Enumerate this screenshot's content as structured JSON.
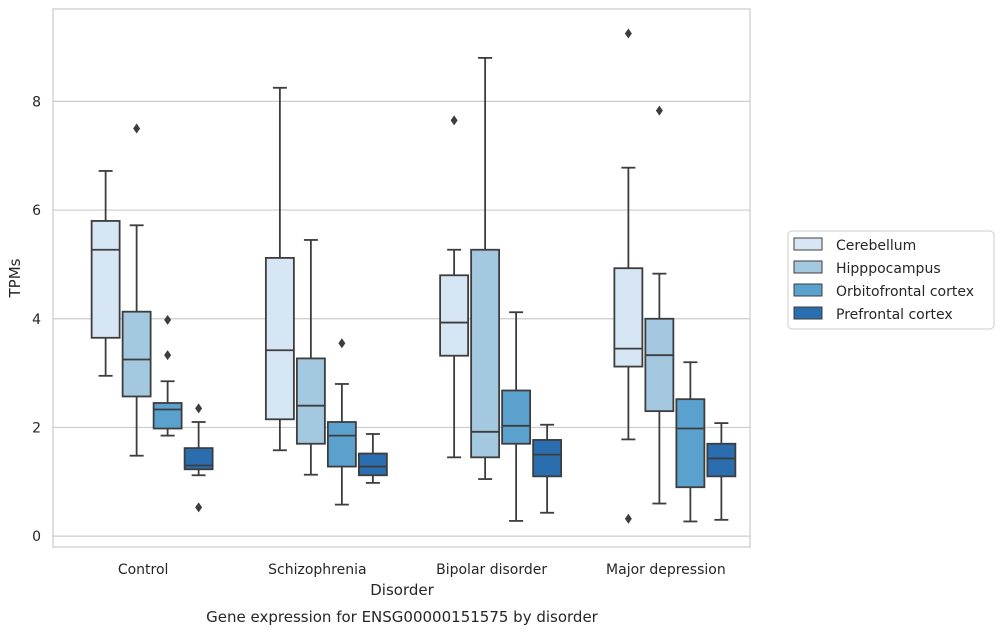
{
  "chart_data": {
    "type": "boxplot",
    "title": "",
    "caption": "Gene expression for ENSG00000151575 by disorder",
    "xlabel": "Disorder",
    "ylabel": "TPMs",
    "ylim": [
      -0.2,
      9.7
    ],
    "yticks": [
      0,
      2,
      4,
      6,
      8
    ],
    "grid": "horizontal",
    "legend_position": "right",
    "categories": [
      "Control",
      "Schizophrenia",
      "Bipolar disorder",
      "Major depression"
    ],
    "series": [
      {
        "name": "Cerebellum",
        "color": "#d6e6f4",
        "boxes": [
          {
            "whislo": 2.95,
            "q1": 3.65,
            "med": 5.27,
            "q3": 5.8,
            "whishi": 6.72,
            "fliers": []
          },
          {
            "whislo": 1.58,
            "q1": 2.15,
            "med": 3.42,
            "q3": 5.12,
            "whishi": 8.25,
            "fliers": []
          },
          {
            "whislo": 1.45,
            "q1": 3.32,
            "med": 3.93,
            "q3": 4.8,
            "whishi": 5.27,
            "fliers": [
              7.65
            ]
          },
          {
            "whislo": 1.78,
            "q1": 3.12,
            "med": 3.45,
            "q3": 4.93,
            "whishi": 6.78,
            "fliers": [
              9.25,
              0.32
            ]
          }
        ]
      },
      {
        "name": "Hipppocampus",
        "color": "#a3c8e0",
        "boxes": [
          {
            "whislo": 1.48,
            "q1": 2.57,
            "med": 3.25,
            "q3": 4.13,
            "whishi": 5.72,
            "fliers": [
              7.5
            ]
          },
          {
            "whislo": 1.13,
            "q1": 1.7,
            "med": 2.4,
            "q3": 3.27,
            "whishi": 5.45,
            "fliers": []
          },
          {
            "whislo": 1.05,
            "q1": 1.45,
            "med": 1.92,
            "q3": 5.27,
            "whishi": 8.8,
            "fliers": []
          },
          {
            "whislo": 0.6,
            "q1": 2.3,
            "med": 3.33,
            "q3": 4.0,
            "whishi": 4.83,
            "fliers": [
              7.83
            ]
          }
        ]
      },
      {
        "name": "Orbitofrontal cortex",
        "color": "#5ba1ce",
        "boxes": [
          {
            "whislo": 1.85,
            "q1": 1.98,
            "med": 2.33,
            "q3": 2.45,
            "whishi": 2.85,
            "fliers": [
              3.98,
              3.33
            ]
          },
          {
            "whislo": 0.58,
            "q1": 1.28,
            "med": 1.85,
            "q3": 2.1,
            "whishi": 2.8,
            "fliers": [
              3.55
            ]
          },
          {
            "whislo": 0.28,
            "q1": 1.7,
            "med": 2.03,
            "q3": 2.68,
            "whishi": 4.12,
            "fliers": []
          },
          {
            "whislo": 0.27,
            "q1": 0.9,
            "med": 1.98,
            "q3": 2.52,
            "whishi": 3.2,
            "fliers": []
          }
        ]
      },
      {
        "name": "Prefrontal cortex",
        "color": "#2a6eb0",
        "boxes": [
          {
            "whislo": 1.12,
            "q1": 1.23,
            "med": 1.3,
            "q3": 1.62,
            "whishi": 2.1,
            "fliers": [
              2.35,
              0.53
            ]
          },
          {
            "whislo": 0.98,
            "q1": 1.12,
            "med": 1.28,
            "q3": 1.52,
            "whishi": 1.88,
            "fliers": []
          },
          {
            "whislo": 0.43,
            "q1": 1.1,
            "med": 1.5,
            "q3": 1.77,
            "whishi": 2.05,
            "fliers": []
          },
          {
            "whislo": 0.3,
            "q1": 1.1,
            "med": 1.43,
            "q3": 1.7,
            "whishi": 2.08,
            "fliers": []
          }
        ]
      }
    ]
  }
}
